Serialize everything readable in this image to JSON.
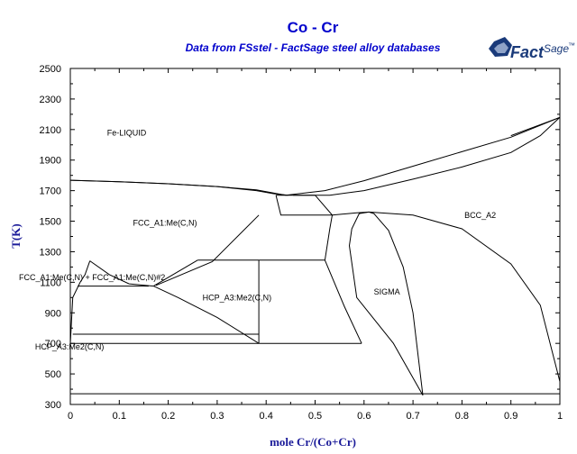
{
  "header": {
    "title": "Co - Cr",
    "subtitle": "Data from FSstel - FactSage steel alloy databases",
    "logo": {
      "text": "Fact",
      "superscript": "Sage",
      "mark": "™",
      "color": "#1a3a7a"
    }
  },
  "colors": {
    "title": "#0000cc",
    "axis_label": "#1a1a99",
    "lines": "#000000"
  },
  "chart_data": {
    "type": "line",
    "title": "Co - Cr",
    "subtitle": "Data from FSstel - FactSage steel alloy databases",
    "xlabel": "mole Cr/(Co+Cr)",
    "ylabel": "T(K)",
    "xlim": [
      0,
      1
    ],
    "ylim": [
      300,
      2500
    ],
    "grid": false,
    "x_ticks": [
      0,
      0.1,
      0.2,
      0.3,
      0.4,
      0.5,
      0.6,
      0.7,
      0.8,
      0.9,
      1
    ],
    "x_tick_labels": [
      "0",
      "0.1",
      "0.2",
      "0.3",
      "0.4",
      "0.5",
      "0.6",
      "0.7",
      "0.8",
      "0.9",
      "1"
    ],
    "y_ticks": [
      300,
      500,
      700,
      900,
      1100,
      1300,
      1500,
      1700,
      1900,
      2100,
      2300,
      2500
    ],
    "y_tick_labels": [
      "300",
      "500",
      "700",
      "900",
      "1100",
      "1300",
      "1500",
      "1700",
      "1900",
      "2100",
      "2300",
      "2500"
    ],
    "region_labels": [
      {
        "text": "Fe-LIQUID",
        "x": 0.075,
        "y": 2060
      },
      {
        "text": "FCC_A1:Me(C,N)",
        "x": 0.128,
        "y": 1470
      },
      {
        "text": "BCC_A2",
        "x": 0.805,
        "y": 1520
      },
      {
        "text": "SIGMA",
        "x": 0.62,
        "y": 1020
      },
      {
        "text": "HCP_A3:Me2(C,N)",
        "x": 0.27,
        "y": 980
      },
      {
        "text": "FCC_A1:Me(C,N) + FCC_A1:Me(C,N)#2",
        "x": -0.105,
        "y": 1115
      },
      {
        "text": "HCP_A3:Me2(C,N)",
        "x": -0.072,
        "y": 660
      }
    ],
    "series": [
      {
        "values": [
          [
            0,
            1768
          ],
          [
            0.1,
            1758
          ],
          [
            0.2,
            1745
          ],
          [
            0.3,
            1727
          ],
          [
            0.38,
            1705
          ],
          [
            0.44,
            1670
          ]
        ]
      },
      {
        "values": [
          [
            0,
            1768
          ],
          [
            0.1,
            1758
          ],
          [
            0.2,
            1745
          ],
          [
            0.3,
            1727
          ],
          [
            0.38,
            1700
          ],
          [
            0.415,
            1680
          ],
          [
            0.445,
            1670
          ]
        ]
      },
      {
        "values": [
          [
            0.44,
            1670
          ],
          [
            0.52,
            1700
          ],
          [
            0.6,
            1765
          ],
          [
            0.7,
            1860
          ],
          [
            0.8,
            1955
          ],
          [
            0.9,
            2050
          ],
          [
            1,
            2180
          ]
        ]
      },
      {
        "values": [
          [
            0.455,
            1670
          ],
          [
            0.53,
            1670
          ],
          [
            0.6,
            1700
          ],
          [
            0.7,
            1775
          ],
          [
            0.8,
            1855
          ],
          [
            0.9,
            1950
          ],
          [
            0.96,
            2060
          ],
          [
            1,
            2180
          ]
        ]
      },
      {
        "values": [
          [
            0.42,
            1670
          ],
          [
            0.44,
            1670
          ],
          [
            0.46,
            1670
          ],
          [
            0.5,
            1670
          ]
        ]
      },
      {
        "values": [
          [
            0.42,
            1670
          ],
          [
            0.43,
            1540
          ],
          [
            0.535,
            1540
          ],
          [
            0.5,
            1670
          ]
        ]
      },
      {
        "values": [
          [
            0.535,
            1540
          ],
          [
            0.585,
            1555
          ],
          [
            0.61,
            1560
          ]
        ]
      },
      {
        "values": [
          [
            0.61,
            1560
          ],
          [
            0.7,
            1540
          ],
          [
            0.8,
            1450
          ],
          [
            0.9,
            1220
          ],
          [
            0.96,
            950
          ],
          [
            1,
            450
          ]
        ]
      },
      {
        "values": [
          [
            0.61,
            1560
          ],
          [
            0.62,
            1550
          ],
          [
            0.65,
            1440
          ],
          [
            0.68,
            1200
          ],
          [
            0.7,
            900
          ],
          [
            0.72,
            360
          ]
        ]
      },
      {
        "values": [
          [
            0.61,
            1560
          ],
          [
            0.59,
            1550
          ],
          [
            0.575,
            1450
          ],
          [
            0.57,
            1340
          ],
          [
            0.585,
            1000
          ],
          [
            0.66,
            700
          ],
          [
            0.72,
            360
          ]
        ]
      },
      {
        "values": [
          [
            0.385,
            1540
          ],
          [
            0.29,
            1235
          ],
          [
            0.175,
            1080
          ]
        ]
      },
      {
        "values": [
          [
            0.535,
            1540
          ],
          [
            0.53,
            1450
          ],
          [
            0.52,
            1245
          ],
          [
            0.56,
            940
          ],
          [
            0.595,
            700
          ]
        ]
      },
      {
        "values": [
          [
            0.385,
            1245
          ],
          [
            0.52,
            1245
          ]
        ]
      },
      {
        "values": [
          [
            0.385,
            1245
          ],
          [
            0.385,
            700
          ]
        ]
      },
      {
        "values": [
          [
            0.385,
            700
          ],
          [
            0.595,
            700
          ]
        ]
      },
      {
        "values": [
          [
            0.26,
            1245
          ],
          [
            0.385,
            1245
          ]
        ]
      },
      {
        "values": [
          [
            0.17,
            1075
          ],
          [
            0.26,
            1245
          ]
        ]
      },
      {
        "values": [
          [
            0.04,
            1240
          ],
          [
            0.08,
            1150
          ],
          [
            0.12,
            1090
          ],
          [
            0.17,
            1075
          ]
        ]
      },
      {
        "values": [
          [
            0.04,
            1240
          ],
          [
            0.03,
            1150
          ],
          [
            0.02,
            1100
          ],
          [
            0.005,
            1000
          ],
          [
            0,
            700
          ]
        ]
      },
      {
        "values": [
          [
            0.015,
            1075
          ],
          [
            0.16,
            1075
          ]
        ]
      },
      {
        "values": [
          [
            0.17,
            1075
          ],
          [
            0.22,
            1000
          ],
          [
            0.3,
            870
          ],
          [
            0.385,
            700
          ]
        ]
      },
      {
        "values": [
          [
            0.005,
            760
          ],
          [
            0.385,
            760
          ]
        ]
      },
      {
        "values": [
          [
            0,
            700
          ],
          [
            0.385,
            700
          ]
        ]
      },
      {
        "values": [
          [
            0,
            370
          ],
          [
            1,
            370
          ]
        ]
      },
      {
        "values": [
          [
            0.9,
            2060
          ],
          [
            1,
            2180
          ]
        ]
      }
    ]
  }
}
